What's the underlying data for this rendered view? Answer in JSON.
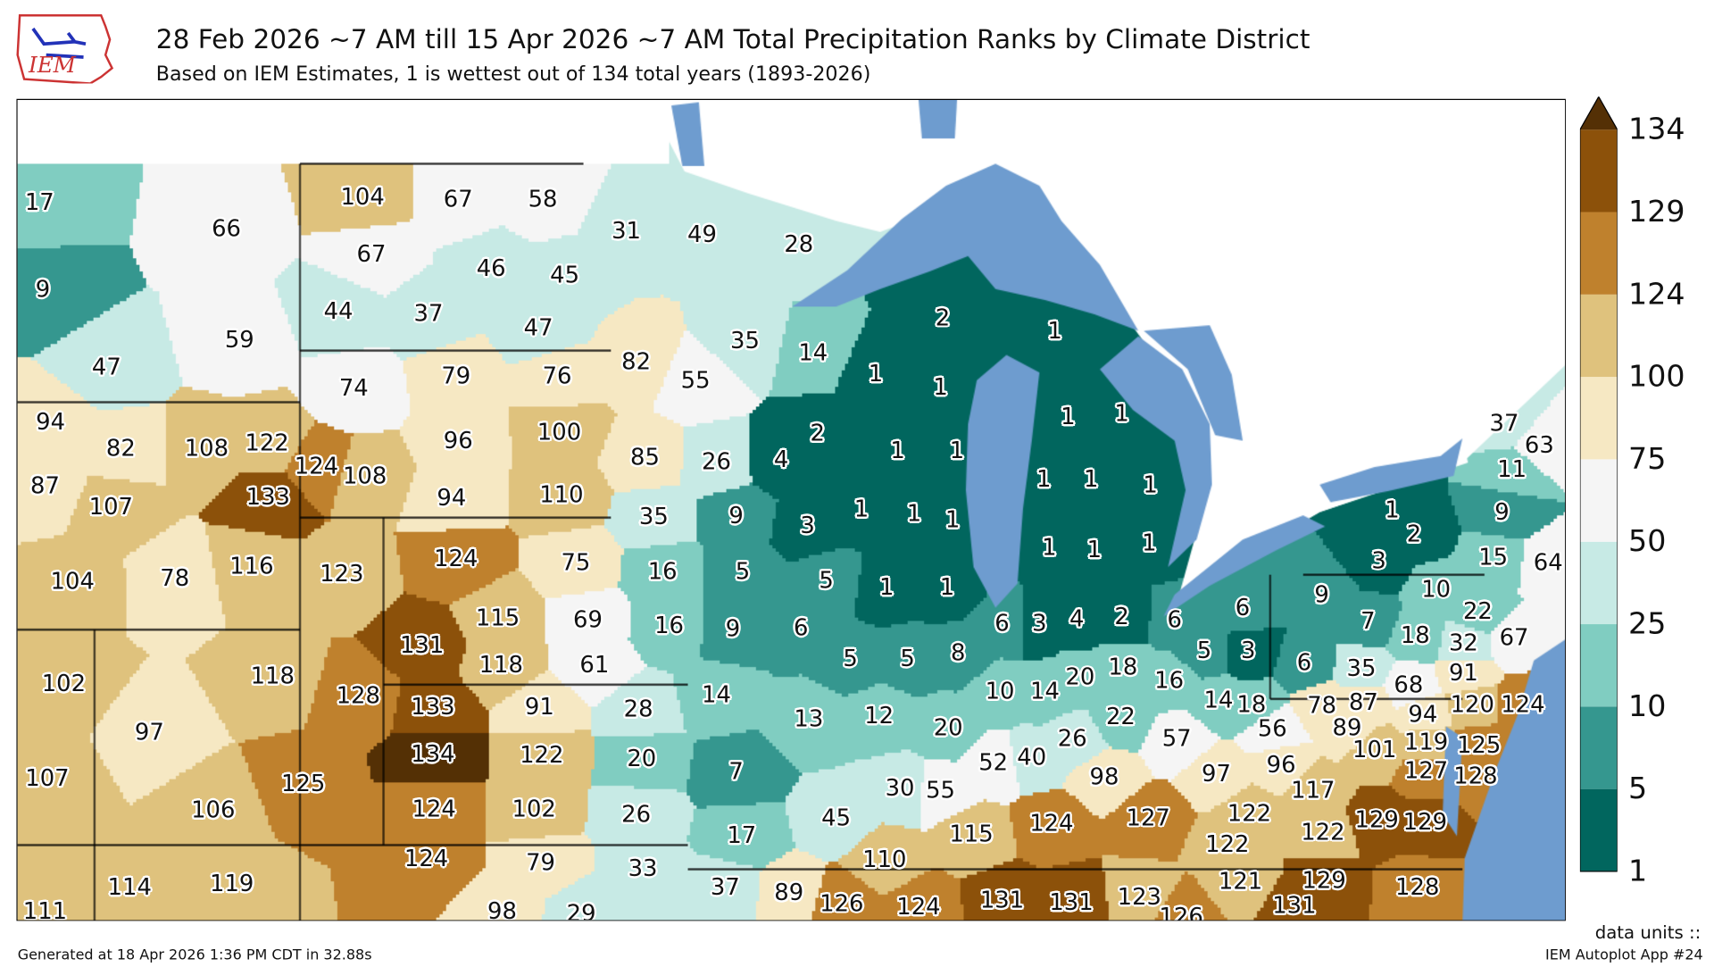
{
  "header": {
    "title": "28 Feb 2026 ~7 AM till 15 Apr 2026 ~7 AM Total Precipitation Ranks by Climate District",
    "subtitle": "Based on IEM Estimates, 1 is wettest out of 134 total years (1893-2026)",
    "logo_text": "IEM"
  },
  "footer": {
    "generated": "Generated at 18 Apr 2026 1:36 PM CDT in 32.88s",
    "app": "IEM Autoplot App #24",
    "units": "data units ::"
  },
  "colors": {
    "water": "#6e9ccf",
    "bins": [
      "#01665e",
      "#35978f",
      "#80cdc1",
      "#c7eae5",
      "#f5f5f5",
      "#f6e8c3",
      "#dfc27d",
      "#bf812d",
      "#8c510a",
      "#543005"
    ]
  },
  "colorbar": {
    "ticks": [
      "1",
      "5",
      "10",
      "25",
      "50",
      "75",
      "100",
      "124",
      "129",
      "134"
    ],
    "bounds": [
      1,
      5,
      10,
      25,
      50,
      75,
      100,
      124,
      129,
      134
    ]
  },
  "districts": [
    {
      "rank": "17"
    },
    {
      "rank": "66"
    },
    {
      "rank": "9"
    },
    {
      "rank": "59"
    },
    {
      "rank": "47"
    },
    {
      "rank": "104"
    },
    {
      "rank": "67"
    },
    {
      "rank": "58"
    },
    {
      "rank": "67"
    },
    {
      "rank": "46"
    },
    {
      "rank": "45"
    },
    {
      "rank": "44"
    },
    {
      "rank": "37"
    },
    {
      "rank": "47"
    },
    {
      "rank": "74"
    },
    {
      "rank": "79"
    },
    {
      "rank": "76"
    },
    {
      "rank": "96"
    },
    {
      "rank": "100"
    },
    {
      "rank": "94"
    },
    {
      "rank": "110"
    },
    {
      "rank": "108"
    },
    {
      "rank": "124"
    },
    {
      "rank": "94"
    },
    {
      "rank": "82"
    },
    {
      "rank": "108"
    },
    {
      "rank": "122"
    },
    {
      "rank": "87"
    },
    {
      "rank": "107"
    },
    {
      "rank": "133"
    },
    {
      "rank": "116"
    },
    {
      "rank": "104"
    },
    {
      "rank": "78"
    },
    {
      "rank": "123"
    },
    {
      "rank": "124"
    },
    {
      "rank": "75"
    },
    {
      "rank": "115"
    },
    {
      "rank": "69"
    },
    {
      "rank": "131"
    },
    {
      "rank": "118"
    },
    {
      "rank": "61"
    },
    {
      "rank": "102"
    },
    {
      "rank": "118"
    },
    {
      "rank": "128"
    },
    {
      "rank": "97"
    },
    {
      "rank": "107"
    },
    {
      "rank": "106"
    },
    {
      "rank": "125"
    },
    {
      "rank": "133"
    },
    {
      "rank": "91"
    },
    {
      "rank": "134"
    },
    {
      "rank": "122"
    },
    {
      "rank": "124"
    },
    {
      "rank": "102"
    },
    {
      "rank": "28"
    },
    {
      "rank": "20"
    },
    {
      "rank": "26"
    },
    {
      "rank": "33"
    },
    {
      "rank": "29"
    },
    {
      "rank": "124"
    },
    {
      "rank": "79"
    },
    {
      "rank": "98"
    },
    {
      "rank": "114"
    },
    {
      "rank": "119"
    },
    {
      "rank": "111"
    },
    {
      "rank": "31"
    },
    {
      "rank": "49"
    },
    {
      "rank": "28"
    },
    {
      "rank": "82"
    },
    {
      "rank": "55"
    },
    {
      "rank": "35"
    },
    {
      "rank": "85"
    },
    {
      "rank": "26"
    },
    {
      "rank": "35"
    },
    {
      "rank": "9"
    },
    {
      "rank": "3"
    },
    {
      "rank": "16"
    },
    {
      "rank": "5"
    },
    {
      "rank": "5"
    },
    {
      "rank": "16"
    },
    {
      "rank": "9"
    },
    {
      "rank": "6"
    },
    {
      "rank": "14"
    },
    {
      "rank": "1"
    },
    {
      "rank": "1"
    },
    {
      "rank": "2"
    },
    {
      "rank": "4"
    },
    {
      "rank": "1"
    },
    {
      "rank": "1"
    },
    {
      "rank": "1"
    },
    {
      "rank": "1"
    },
    {
      "rank": "1"
    },
    {
      "rank": "2"
    },
    {
      "rank": "1"
    },
    {
      "rank": "1"
    },
    {
      "rank": "1"
    },
    {
      "rank": "1"
    },
    {
      "rank": "1"
    },
    {
      "rank": "1"
    },
    {
      "rank": "1"
    },
    {
      "rank": "1"
    },
    {
      "rank": "1"
    },
    {
      "rank": "1"
    },
    {
      "rank": "1"
    },
    {
      "rank": "5"
    },
    {
      "rank": "5"
    },
    {
      "rank": "8"
    },
    {
      "rank": "12"
    },
    {
      "rank": "20"
    },
    {
      "rank": "30"
    },
    {
      "rank": "55"
    },
    {
      "rank": "14"
    },
    {
      "rank": "13"
    },
    {
      "rank": "7"
    },
    {
      "rank": "45"
    },
    {
      "rank": "17"
    },
    {
      "rank": "6"
    },
    {
      "rank": "3"
    },
    {
      "rank": "4"
    },
    {
      "rank": "10"
    },
    {
      "rank": "14"
    },
    {
      "rank": "20"
    },
    {
      "rank": "52"
    },
    {
      "rank": "40"
    },
    {
      "rank": "26"
    },
    {
      "rank": "2"
    },
    {
      "rank": "6"
    },
    {
      "rank": "6"
    },
    {
      "rank": "5"
    },
    {
      "rank": "3"
    },
    {
      "rank": "18"
    },
    {
      "rank": "16"
    },
    {
      "rank": "22"
    },
    {
      "rank": "14"
    },
    {
      "rank": "18"
    },
    {
      "rank": "57"
    },
    {
      "rank": "9"
    },
    {
      "rank": "7"
    },
    {
      "rank": "10"
    },
    {
      "rank": "22"
    },
    {
      "rank": "18"
    },
    {
      "rank": "32"
    },
    {
      "rank": "6"
    },
    {
      "rank": "35"
    },
    {
      "rank": "68"
    },
    {
      "rank": "91"
    },
    {
      "rank": "67"
    },
    {
      "rank": "37"
    },
    {
      "rank": "63"
    },
    {
      "rank": "11"
    },
    {
      "rank": "9"
    },
    {
      "rank": "1"
    },
    {
      "rank": "2"
    },
    {
      "rank": "3"
    },
    {
      "rank": "15"
    },
    {
      "rank": "64"
    },
    {
      "rank": "124"
    },
    {
      "rank": "78"
    },
    {
      "rank": "87"
    },
    {
      "rank": "89"
    },
    {
      "rank": "94"
    },
    {
      "rank": "120"
    },
    {
      "rank": "56"
    },
    {
      "rank": "101"
    },
    {
      "rank": "119"
    },
    {
      "rank": "125"
    },
    {
      "rank": "127"
    },
    {
      "rank": "128"
    },
    {
      "rank": "97"
    },
    {
      "rank": "96"
    },
    {
      "rank": "117"
    },
    {
      "rank": "122"
    },
    {
      "rank": "122"
    },
    {
      "rank": "122"
    },
    {
      "rank": "129"
    },
    {
      "rank": "129"
    },
    {
      "rank": "98"
    },
    {
      "rank": "115"
    },
    {
      "rank": "124"
    },
    {
      "rank": "127"
    },
    {
      "rank": "110"
    },
    {
      "rank": "126"
    },
    {
      "rank": "124"
    },
    {
      "rank": "131"
    },
    {
      "rank": "131"
    },
    {
      "rank": "123"
    },
    {
      "rank": "126"
    },
    {
      "rank": "121"
    },
    {
      "rank": "129"
    },
    {
      "rank": "131"
    },
    {
      "rank": "128"
    },
    {
      "rank": "37"
    },
    {
      "rank": "89"
    }
  ]
}
